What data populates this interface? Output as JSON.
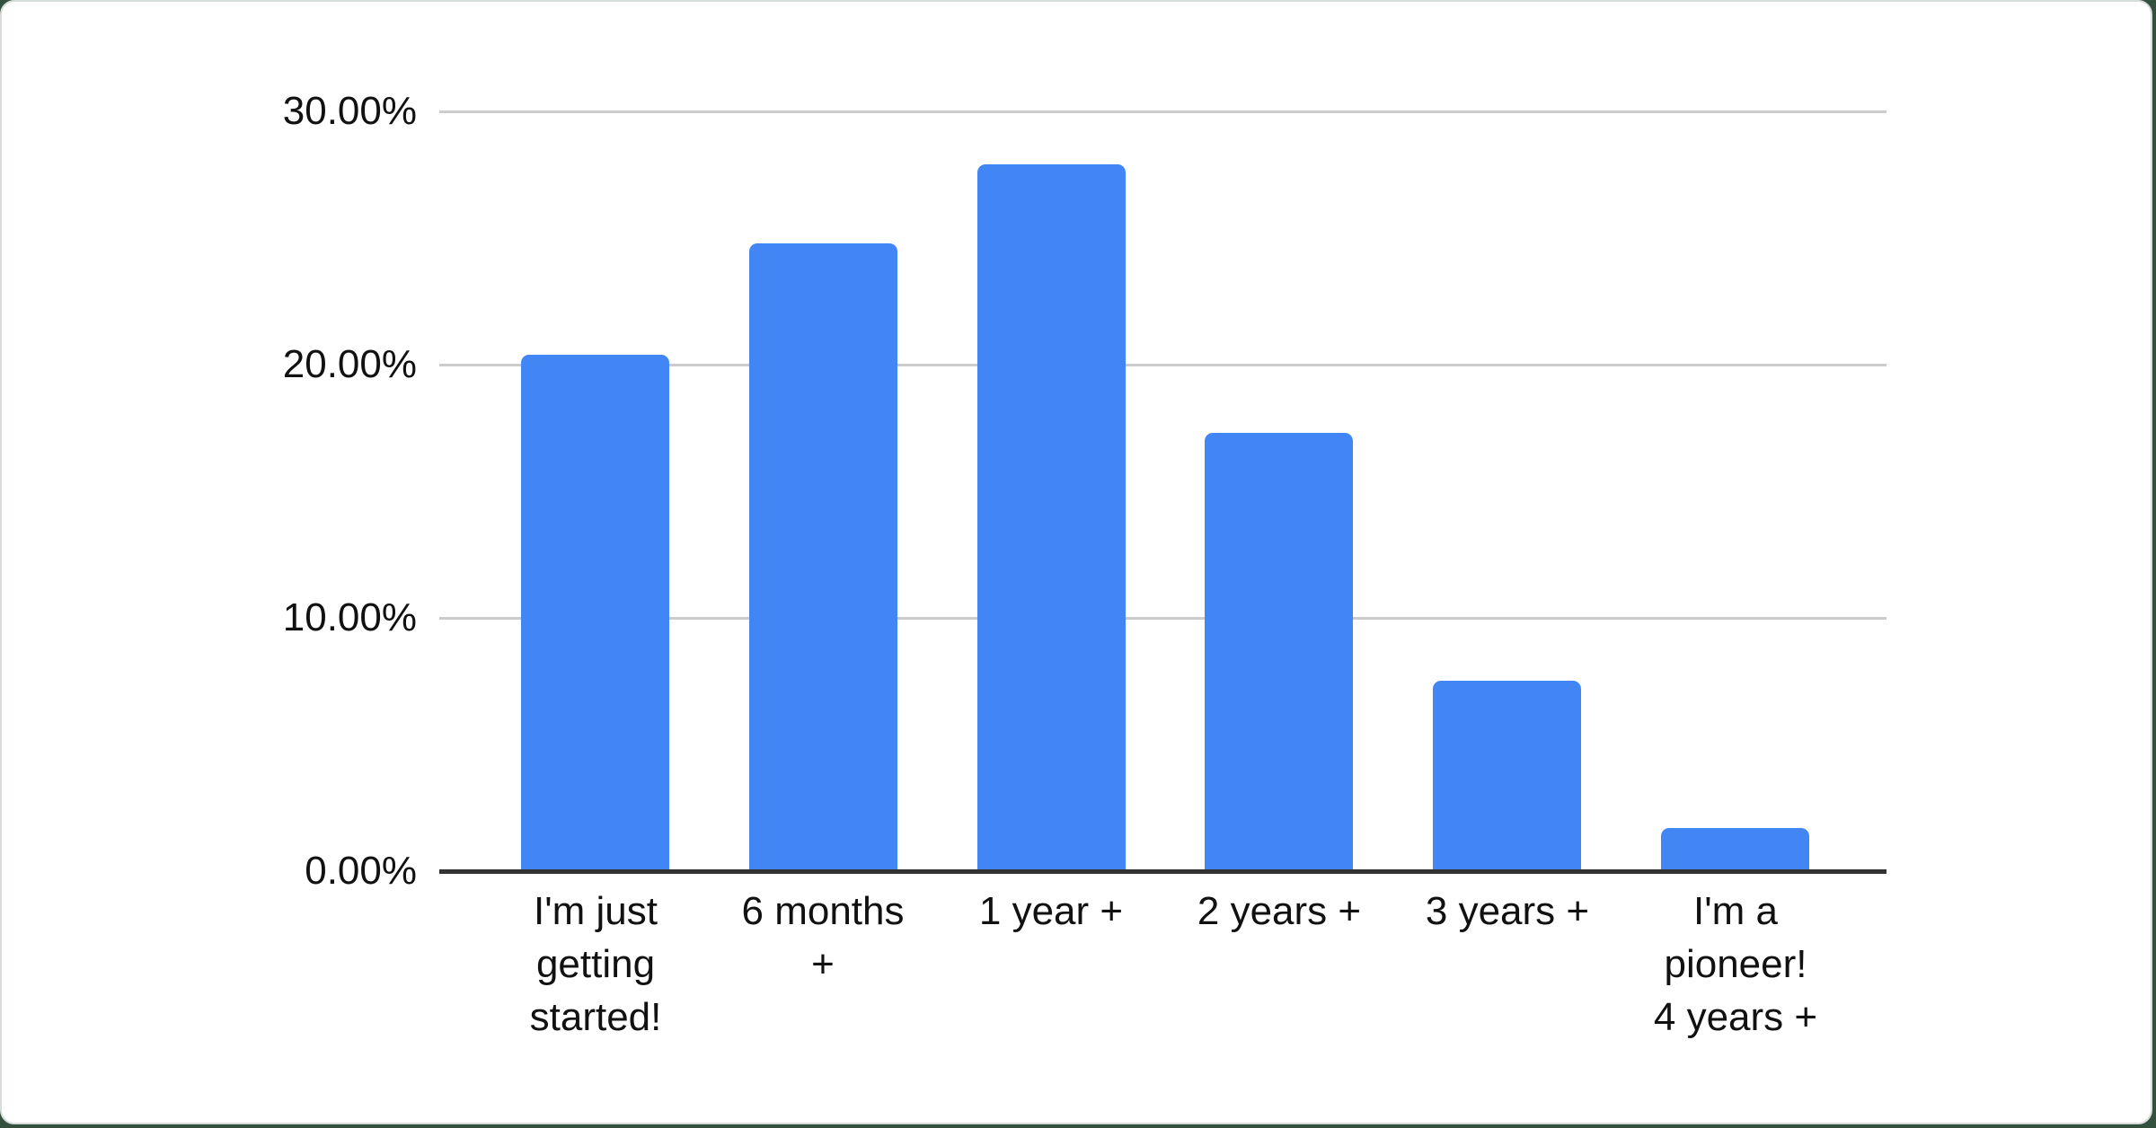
{
  "page": {
    "background_color": "#34503F",
    "card_background": "#FFFFFF",
    "card_border_color": "#D7DDD8"
  },
  "chart_data": {
    "type": "bar",
    "title": "",
    "xlabel": "",
    "ylabel": "",
    "categories": [
      "I'm just getting started!",
      "6 months +",
      "1 year +",
      "2 years +",
      "3 years +",
      "I'm a pioneer! 4 years +"
    ],
    "category_lines": [
      [
        "I'm just",
        "getting",
        "started!"
      ],
      [
        "6 months",
        "+"
      ],
      [
        "1 year +"
      ],
      [
        "2 years +"
      ],
      [
        "3 years +"
      ],
      [
        "I'm a",
        "pioneer!",
        "4 years +"
      ]
    ],
    "values": [
      20.4,
      24.8,
      27.9,
      17.3,
      7.5,
      1.7
    ],
    "unit": "%",
    "ylim": [
      0,
      30
    ],
    "y_ticks": [
      {
        "value": 30,
        "label": "30.00%"
      },
      {
        "value": 20,
        "label": "20.00%"
      },
      {
        "value": 10,
        "label": "10.00%"
      },
      {
        "value": 0,
        "label": "0.00%"
      }
    ],
    "grid": true,
    "legend_position": "none",
    "bar_color": "#4285F4",
    "gridline_color": "#CCCCCC",
    "axis_color": "#333333",
    "label_color": "#111111"
  }
}
